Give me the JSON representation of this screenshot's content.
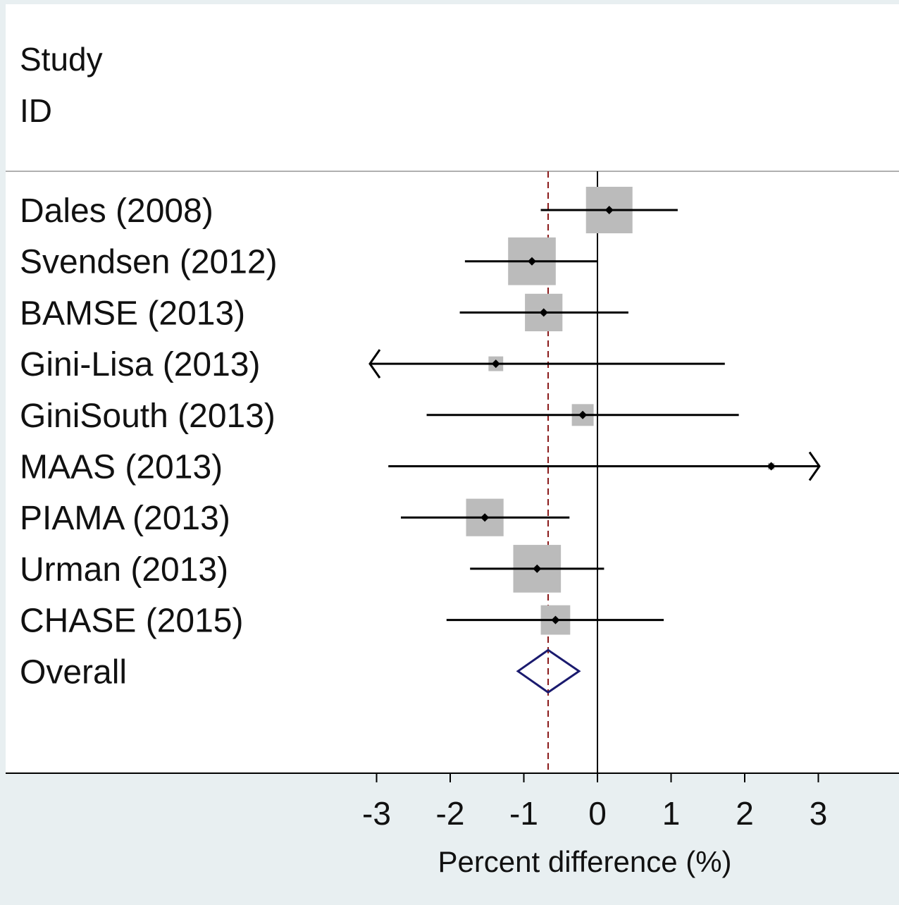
{
  "chart_data": {
    "type": "forest",
    "header": [
      "Study",
      "ID"
    ],
    "xlabel": "Percent difference (%)",
    "xlim": [
      -3.05,
      4.0
    ],
    "x_ticks": [
      -3,
      -2,
      -1,
      0,
      1,
      2,
      3
    ],
    "x_tick_labels": [
      "-3",
      "-2",
      "-1",
      "0",
      "1",
      "2",
      "3"
    ],
    "null_line": 0,
    "overall_line": -0.67,
    "studies": [
      {
        "label": "Dales (2008)",
        "estimate": 0.16,
        "ci_low": -0.77,
        "ci_high": 1.09,
        "weight": 1.0,
        "arrow_left": false,
        "arrow_right": false
      },
      {
        "label": "Svendsen (2012)",
        "estimate": -0.89,
        "ci_low": -1.8,
        "ci_high": 0.0,
        "weight": 1.05,
        "arrow_left": false,
        "arrow_right": false
      },
      {
        "label": "BAMSE (2013)",
        "estimate": -0.73,
        "ci_low": -1.87,
        "ci_high": 0.42,
        "weight": 0.65,
        "arrow_left": false,
        "arrow_right": false
      },
      {
        "label": "Gini-Lisa (2013)",
        "estimate": -1.38,
        "ci_low": -4.5,
        "ci_high": 1.73,
        "weight": 0.1,
        "arrow_left": true,
        "arrow_right": false
      },
      {
        "label": "GiniSouth (2013)",
        "estimate": -0.2,
        "ci_low": -2.32,
        "ci_high": 1.92,
        "weight": 0.22,
        "arrow_left": false,
        "arrow_right": false
      },
      {
        "label": "MAAS (2013)",
        "estimate": 2.36,
        "ci_low": -2.84,
        "ci_high": 7.5,
        "weight": 0.02,
        "arrow_left": false,
        "arrow_right": true
      },
      {
        "label": "PIAMA (2013)",
        "estimate": -1.53,
        "ci_low": -2.67,
        "ci_high": -0.38,
        "weight": 0.65,
        "arrow_left": false,
        "arrow_right": false
      },
      {
        "label": "Urman  (2013)",
        "estimate": -0.82,
        "ci_low": -1.73,
        "ci_high": 0.09,
        "weight": 1.05,
        "arrow_left": false,
        "arrow_right": false
      },
      {
        "label": "CHASE (2015)",
        "estimate": -0.57,
        "ci_low": -2.05,
        "ci_high": 0.9,
        "weight": 0.4,
        "arrow_left": false,
        "arrow_right": false
      }
    ],
    "overall": {
      "label": "Overall",
      "estimate": -0.67,
      "ci_low": -1.08,
      "ci_high": -0.25
    },
    "colors": {
      "box": "#bbbbbb",
      "ci_line": "#000000",
      "diamond": "#1a1a6e",
      "overall_line": "#8b1a1a",
      "panel_bg": "#ffffff",
      "outer_bg": "#e8eff1"
    }
  }
}
